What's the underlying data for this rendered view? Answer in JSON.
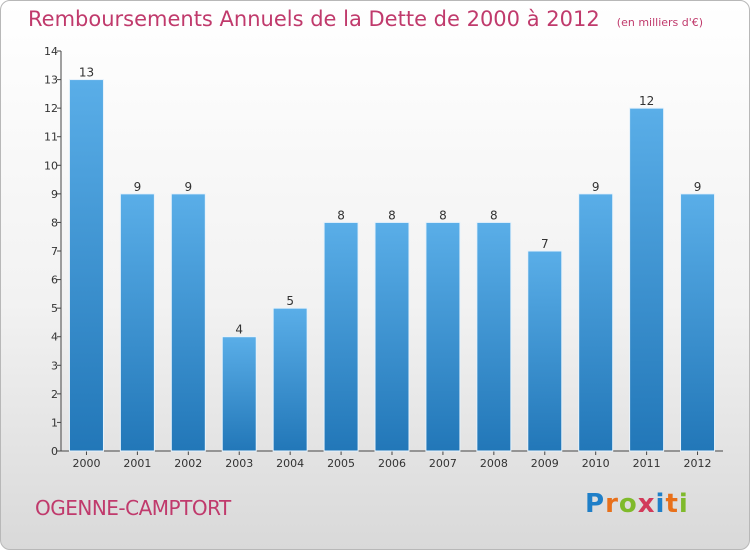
{
  "header": {
    "title": "Remboursements Annuels de la Dette de 2000 à 2012",
    "subtitle": "(en milliers d'€)"
  },
  "footer": {
    "commune": "OGENNE-CAMPTORT",
    "logo_letters": [
      "P",
      "r",
      "o",
      "x",
      "i",
      "t",
      "i"
    ],
    "logo_colors": [
      "#1f7fc8",
      "#e8701a",
      "#7fba2b",
      "#d23a5a",
      "#1f7fc8",
      "#e8701a",
      "#7fba2b"
    ]
  },
  "chart_data": {
    "type": "bar",
    "categories": [
      "2000",
      "2001",
      "2002",
      "2003",
      "2004",
      "2005",
      "2006",
      "2007",
      "2008",
      "2009",
      "2010",
      "2011",
      "2012"
    ],
    "values": [
      13,
      9,
      9,
      4,
      5,
      8,
      8,
      8,
      8,
      7,
      9,
      12,
      9
    ],
    "title": "Remboursements Annuels de la Dette de 2000 à 2012",
    "xlabel": "",
    "ylabel": "",
    "ylim": [
      0,
      14
    ],
    "yticks": [
      0,
      1,
      2,
      3,
      4,
      5,
      6,
      7,
      8,
      9,
      10,
      11,
      12,
      13,
      14
    ],
    "grid": false,
    "bar_color_top": "#5aaee8",
    "bar_color_bottom": "#2277b8"
  }
}
